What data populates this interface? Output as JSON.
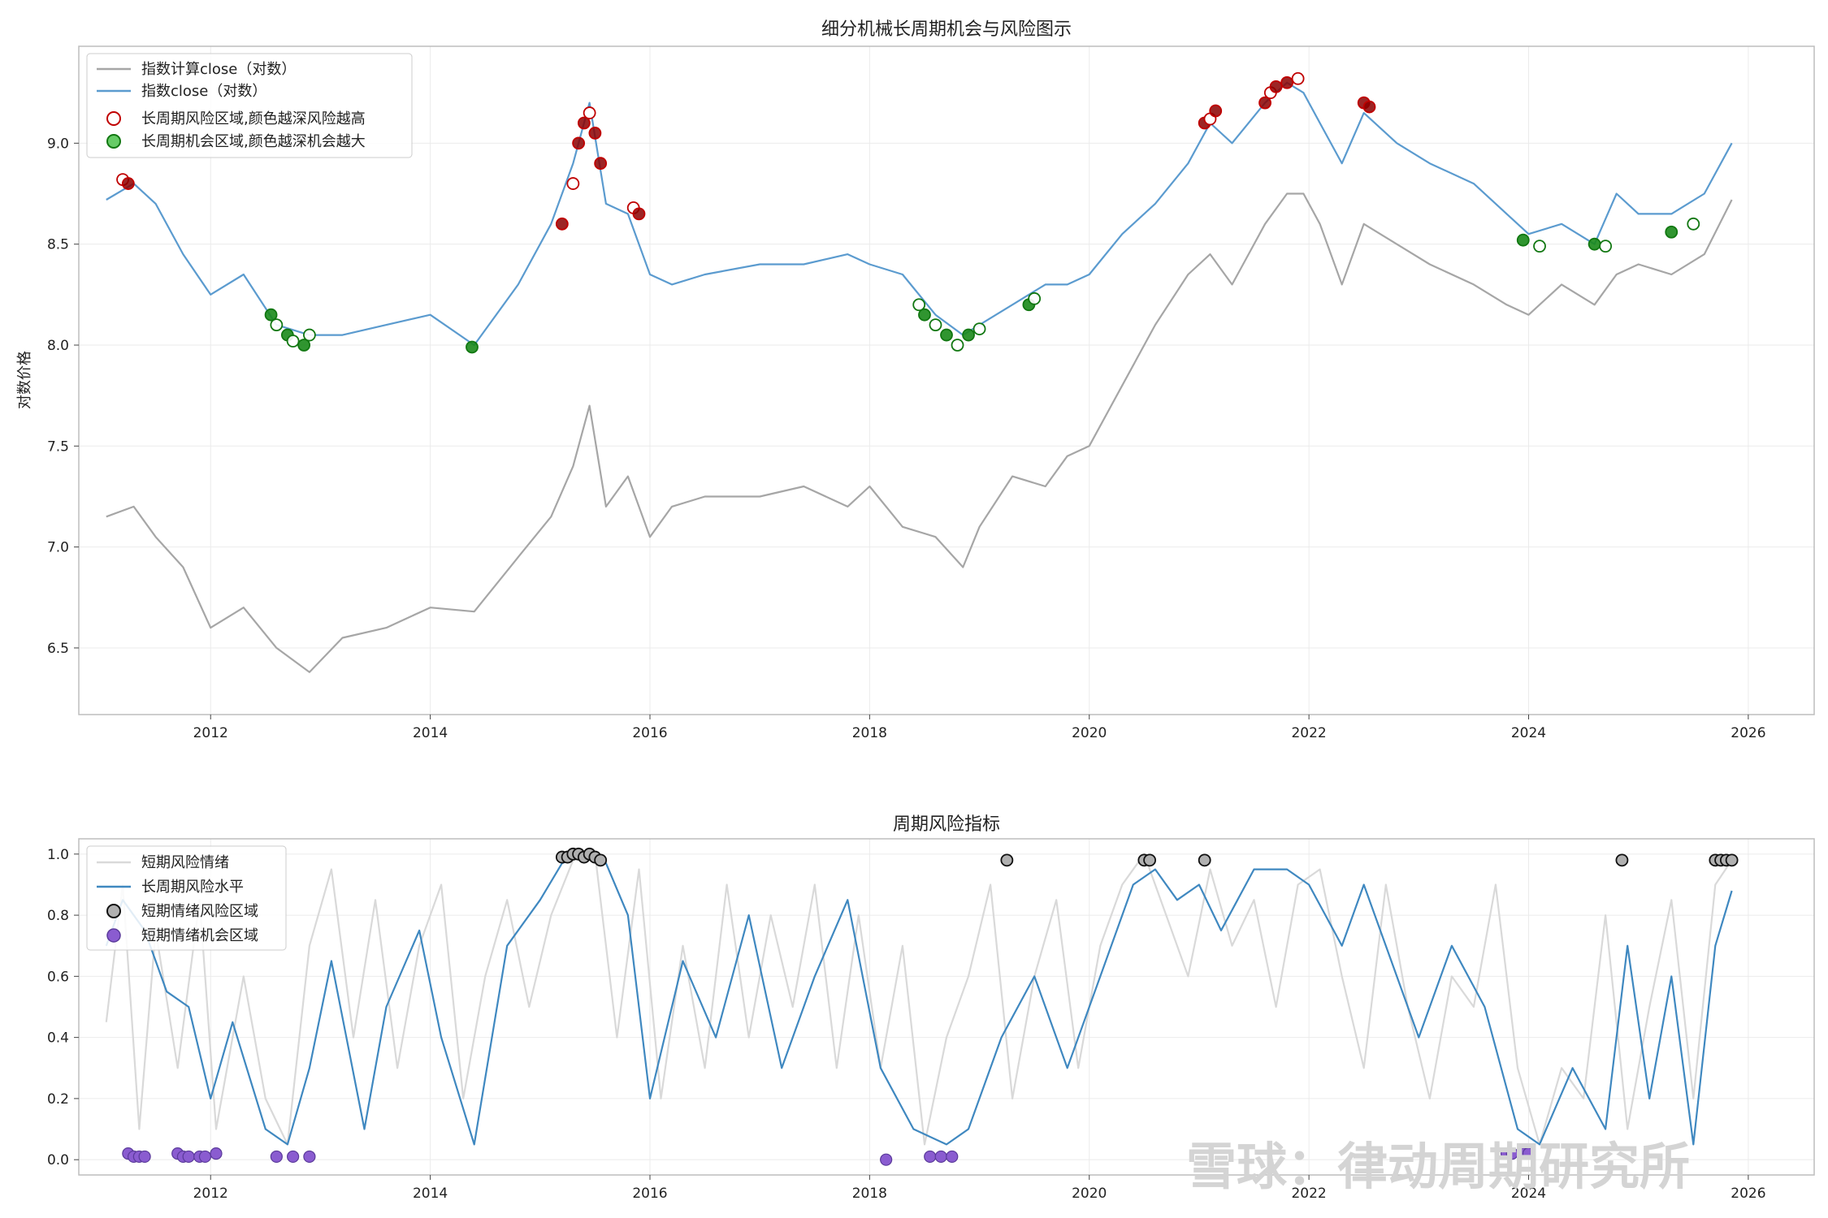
{
  "watermark": "雪球：律动周期研究所",
  "chart_data": [
    {
      "type": "line",
      "title": "细分机械长周期机会与风险图示",
      "xlabel": "",
      "ylabel": "对数价格",
      "xlim": [
        2010.8,
        2026.6
      ],
      "ylim": [
        6.17,
        9.48
      ],
      "x_ticks": [
        2012,
        2014,
        2016,
        2018,
        2020,
        2022,
        2024,
        2026
      ],
      "y_ticks": [
        6.5,
        7.0,
        7.5,
        8.0,
        8.5,
        9.0
      ],
      "grid": true,
      "legend_position": "top-left",
      "legend": [
        "指数计算close（对数）",
        "指数close（对数）",
        "长周期风险区域,颜色越深风险越高",
        "长周期机会区域,颜色越深机会越大"
      ],
      "colors": {
        "calc": "#a6a6a6",
        "close": "#5b9bcf",
        "risk_edge": "#c00000",
        "risk_fill": "#8b0000",
        "opp_edge": "#117711",
        "opp_fill": "#1a8a1a"
      },
      "series": [
        {
          "name": "指数计算close（对数）",
          "x": [
            2011.05,
            2011.3,
            2011.5,
            2011.75,
            2012.0,
            2012.3,
            2012.6,
            2012.9,
            2013.2,
            2013.6,
            2014.0,
            2014.4,
            2014.8,
            2015.1,
            2015.3,
            2015.45,
            2015.6,
            2015.8,
            2016.0,
            2016.2,
            2016.5,
            2017.0,
            2017.4,
            2017.8,
            2018.0,
            2018.3,
            2018.6,
            2018.85,
            2019.0,
            2019.3,
            2019.6,
            2019.8,
            2020.0,
            2020.3,
            2020.6,
            2020.9,
            2021.1,
            2021.3,
            2021.6,
            2021.8,
            2021.95,
            2022.1,
            2022.3,
            2022.5,
            2022.8,
            2023.1,
            2023.5,
            2023.8,
            2024.0,
            2024.3,
            2024.6,
            2024.8,
            2025.0,
            2025.3,
            2025.6,
            2025.85
          ],
          "y": [
            7.15,
            7.2,
            7.05,
            6.9,
            6.6,
            6.7,
            6.5,
            6.38,
            6.55,
            6.6,
            6.7,
            6.68,
            6.95,
            7.15,
            7.4,
            7.7,
            7.2,
            7.35,
            7.05,
            7.2,
            7.25,
            7.25,
            7.3,
            7.2,
            7.3,
            7.1,
            7.05,
            6.9,
            7.1,
            7.35,
            7.3,
            7.45,
            7.5,
            7.8,
            8.1,
            8.35,
            8.45,
            8.3,
            8.6,
            8.75,
            8.75,
            8.6,
            8.3,
            8.6,
            8.5,
            8.4,
            8.3,
            8.2,
            8.15,
            8.3,
            8.2,
            8.35,
            8.4,
            8.35,
            8.45,
            8.72
          ]
        },
        {
          "name": "指数close（对数）",
          "x": [
            2011.05,
            2011.3,
            2011.5,
            2011.75,
            2012.0,
            2012.3,
            2012.6,
            2012.9,
            2013.2,
            2013.6,
            2014.0,
            2014.4,
            2014.8,
            2015.1,
            2015.3,
            2015.45,
            2015.6,
            2015.8,
            2016.0,
            2016.2,
            2016.5,
            2017.0,
            2017.4,
            2017.8,
            2018.0,
            2018.3,
            2018.6,
            2018.85,
            2019.0,
            2019.3,
            2019.6,
            2019.8,
            2020.0,
            2020.3,
            2020.6,
            2020.9,
            2021.1,
            2021.3,
            2021.6,
            2021.8,
            2021.95,
            2022.1,
            2022.3,
            2022.5,
            2022.8,
            2023.1,
            2023.5,
            2023.8,
            2024.0,
            2024.3,
            2024.6,
            2024.8,
            2025.0,
            2025.3,
            2025.6,
            2025.85
          ],
          "y": [
            8.72,
            8.8,
            8.7,
            8.45,
            8.25,
            8.35,
            8.1,
            8.05,
            8.05,
            8.1,
            8.15,
            8.0,
            8.3,
            8.6,
            8.9,
            9.2,
            8.7,
            8.65,
            8.35,
            8.3,
            8.35,
            8.4,
            8.4,
            8.45,
            8.4,
            8.35,
            8.15,
            8.05,
            8.1,
            8.2,
            8.3,
            8.3,
            8.35,
            8.55,
            8.7,
            8.9,
            9.1,
            9.0,
            9.2,
            9.3,
            9.25,
            9.1,
            8.9,
            9.15,
            9.0,
            8.9,
            8.8,
            8.65,
            8.55,
            8.6,
            8.5,
            8.75,
            8.65,
            8.65,
            8.75,
            9.0
          ]
        }
      ],
      "risk_points": {
        "x": [
          2011.2,
          2011.25,
          2015.2,
          2015.3,
          2015.35,
          2015.4,
          2015.45,
          2015.5,
          2015.55,
          2015.85,
          2015.9,
          2021.05,
          2021.1,
          2021.15,
          2021.6,
          2021.65,
          2021.7,
          2021.8,
          2021.9,
          2022.5,
          2022.55
        ],
        "y": [
          8.82,
          8.8,
          8.6,
          8.8,
          9.0,
          9.1,
          9.15,
          9.05,
          8.9,
          8.68,
          8.65,
          9.1,
          9.12,
          9.16,
          9.2,
          9.25,
          9.28,
          9.3,
          9.32,
          9.2,
          9.18
        ]
      },
      "opportunity_points": {
        "x": [
          2012.55,
          2012.6,
          2012.7,
          2012.75,
          2012.85,
          2012.9,
          2014.38,
          2018.45,
          2018.5,
          2018.6,
          2018.7,
          2018.8,
          2018.9,
          2019.0,
          2019.45,
          2019.5,
          2023.95,
          2024.1,
          2024.6,
          2024.7,
          2025.3,
          2025.5
        ],
        "y": [
          8.15,
          8.1,
          8.05,
          8.02,
          8.0,
          8.05,
          7.99,
          8.2,
          8.15,
          8.1,
          8.05,
          8.0,
          8.05,
          8.08,
          8.2,
          8.23,
          8.52,
          8.49,
          8.5,
          8.49,
          8.56,
          8.6
        ]
      }
    },
    {
      "type": "line",
      "title": "周期风险指标",
      "xlabel": "",
      "ylabel": "",
      "xlim": [
        2010.8,
        2026.6
      ],
      "ylim": [
        -0.05,
        1.05
      ],
      "x_ticks": [
        2012,
        2014,
        2016,
        2018,
        2020,
        2022,
        2024,
        2026
      ],
      "y_ticks": [
        0.0,
        0.2,
        0.4,
        0.6,
        0.8,
        1.0
      ],
      "grid": true,
      "legend_position": "top-left",
      "legend": [
        "短期风险情绪",
        "长周期风险水平",
        "短期情绪风险区域",
        "短期情绪机会区域"
      ],
      "colors": {
        "short": "#d9d9d9",
        "long": "#3f88c0",
        "risk_pt": "#b0b0b0",
        "opp_pt": "#8a5cd0"
      },
      "series": [
        {
          "name": "短期风险情绪",
          "x": [
            2011.05,
            2011.2,
            2011.35,
            2011.5,
            2011.7,
            2011.9,
            2012.05,
            2012.3,
            2012.5,
            2012.7,
            2012.9,
            2013.1,
            2013.3,
            2013.5,
            2013.7,
            2013.9,
            2014.1,
            2014.3,
            2014.5,
            2014.7,
            2014.9,
            2015.1,
            2015.3,
            2015.5,
            2015.7,
            2015.9,
            2016.1,
            2016.3,
            2016.5,
            2016.7,
            2016.9,
            2017.1,
            2017.3,
            2017.5,
            2017.7,
            2017.9,
            2018.1,
            2018.3,
            2018.5,
            2018.7,
            2018.9,
            2019.1,
            2019.3,
            2019.5,
            2019.7,
            2019.9,
            2020.1,
            2020.3,
            2020.5,
            2020.7,
            2020.9,
            2021.1,
            2021.3,
            2021.5,
            2021.7,
            2021.9,
            2022.1,
            2022.3,
            2022.5,
            2022.7,
            2022.9,
            2023.1,
            2023.3,
            2023.5,
            2023.7,
            2023.9,
            2024.1,
            2024.3,
            2024.5,
            2024.7,
            2024.9,
            2025.1,
            2025.3,
            2025.5,
            2025.7,
            2025.85
          ],
          "y": [
            0.45,
            0.9,
            0.1,
            0.75,
            0.3,
            0.85,
            0.1,
            0.6,
            0.2,
            0.05,
            0.7,
            0.95,
            0.4,
            0.85,
            0.3,
            0.7,
            0.9,
            0.2,
            0.6,
            0.85,
            0.5,
            0.8,
            0.98,
            1.0,
            0.4,
            0.95,
            0.2,
            0.7,
            0.3,
            0.9,
            0.4,
            0.8,
            0.5,
            0.9,
            0.3,
            0.8,
            0.3,
            0.7,
            0.05,
            0.4,
            0.6,
            0.9,
            0.2,
            0.6,
            0.85,
            0.3,
            0.7,
            0.9,
            1.0,
            0.8,
            0.6,
            0.95,
            0.7,
            0.85,
            0.5,
            0.9,
            0.95,
            0.6,
            0.3,
            0.9,
            0.5,
            0.2,
            0.6,
            0.5,
            0.9,
            0.3,
            0.05,
            0.3,
            0.2,
            0.8,
            0.1,
            0.5,
            0.85,
            0.2,
            0.9,
            0.98
          ]
        },
        {
          "name": "长周期风险水平",
          "x": [
            2011.05,
            2011.2,
            2011.4,
            2011.6,
            2011.8,
            2012.0,
            2012.2,
            2012.5,
            2012.7,
            2012.9,
            2013.1,
            2013.4,
            2013.6,
            2013.9,
            2014.1,
            2014.4,
            2014.7,
            2015.0,
            2015.2,
            2015.4,
            2015.6,
            2015.8,
            2016.0,
            2016.3,
            2016.6,
            2016.9,
            2017.2,
            2017.5,
            2017.8,
            2018.1,
            2018.4,
            2018.7,
            2018.9,
            2019.2,
            2019.5,
            2019.8,
            2020.1,
            2020.4,
            2020.6,
            2020.8,
            2021.0,
            2021.2,
            2021.5,
            2021.8,
            2022.0,
            2022.3,
            2022.5,
            2022.8,
            2023.0,
            2023.3,
            2023.6,
            2023.9,
            2024.1,
            2024.4,
            2024.7,
            2024.9,
            2025.1,
            2025.3,
            2025.5,
            2025.7,
            2025.85
          ],
          "y": [
            0.7,
            0.85,
            0.75,
            0.55,
            0.5,
            0.2,
            0.45,
            0.1,
            0.05,
            0.3,
            0.65,
            0.1,
            0.5,
            0.75,
            0.4,
            0.05,
            0.7,
            0.85,
            0.97,
            1.0,
            0.97,
            0.8,
            0.2,
            0.65,
            0.4,
            0.8,
            0.3,
            0.6,
            0.85,
            0.3,
            0.1,
            0.05,
            0.1,
            0.4,
            0.6,
            0.3,
            0.6,
            0.9,
            0.95,
            0.85,
            0.9,
            0.75,
            0.95,
            0.95,
            0.9,
            0.7,
            0.9,
            0.6,
            0.4,
            0.7,
            0.5,
            0.1,
            0.05,
            0.3,
            0.1,
            0.7,
            0.2,
            0.6,
            0.05,
            0.7,
            0.88
          ]
        }
      ],
      "risk_points": {
        "x": [
          2015.2,
          2015.25,
          2015.3,
          2015.35,
          2015.4,
          2015.45,
          2015.5,
          2015.55,
          2019.25,
          2020.5,
          2020.55,
          2021.05,
          2024.85,
          2025.7,
          2025.75,
          2025.8,
          2025.85
        ],
        "y": [
          0.99,
          0.99,
          1.0,
          1.0,
          0.99,
          1.0,
          0.99,
          0.98,
          0.98,
          0.98,
          0.98,
          0.98,
          0.98,
          0.98,
          0.98,
          0.98,
          0.98
        ]
      },
      "opportunity_points": {
        "x": [
          2011.25,
          2011.3,
          2011.35,
          2011.4,
          2011.7,
          2011.75,
          2011.8,
          2011.9,
          2011.95,
          2012.05,
          2012.6,
          2012.75,
          2012.9,
          2018.15,
          2018.55,
          2018.65,
          2018.75,
          2023.8,
          2023.85,
          2023.95,
          2024.0
        ],
        "y": [
          0.02,
          0.01,
          0.01,
          0.01,
          0.02,
          0.01,
          0.01,
          0.01,
          0.01,
          0.02,
          0.01,
          0.01,
          0.01,
          0.0,
          0.01,
          0.01,
          0.01,
          0.02,
          0.02,
          0.02,
          0.02
        ]
      }
    }
  ]
}
